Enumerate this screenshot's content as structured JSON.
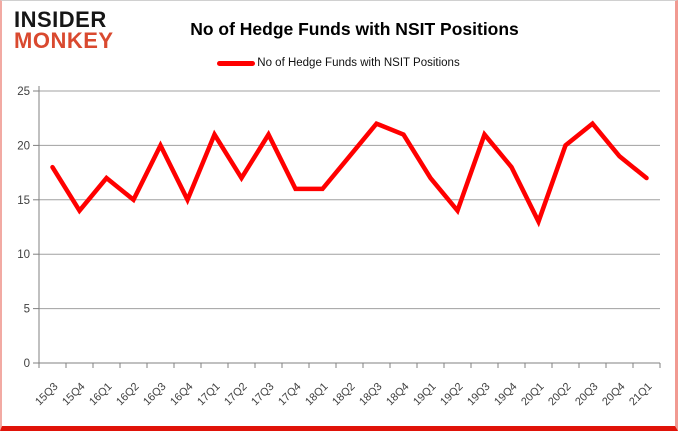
{
  "logo": {
    "line1": "INSIDER",
    "line2": "MONKEY"
  },
  "header": {
    "title": "No of Hedge Funds with NSIT Positions"
  },
  "legend": {
    "label": "No of Hedge Funds with NSIT Positions"
  },
  "colors": {
    "line": "#ff0000",
    "grid": "#a0a0a0",
    "axis": "#808080",
    "tick_text": "#404040",
    "logo_red": "#d9492f",
    "frame_border": "#e01309"
  },
  "chart_data": {
    "type": "line",
    "title": "No of Hedge Funds with NSIT Positions",
    "categories": [
      "15Q3",
      "15Q4",
      "16Q1",
      "16Q2",
      "16Q3",
      "16Q4",
      "17Q1",
      "17Q2",
      "17Q3",
      "17Q4",
      "18Q1",
      "18Q2",
      "18Q3",
      "18Q4",
      "19Q1",
      "19Q2",
      "19Q3",
      "19Q4",
      "20Q1",
      "20Q2",
      "20Q3",
      "20Q4",
      "21Q1"
    ],
    "values": [
      18,
      14,
      17,
      15,
      20,
      15,
      21,
      17,
      21,
      16,
      16,
      19,
      22,
      21,
      17,
      14,
      21,
      18,
      13,
      20,
      22,
      19,
      17
    ],
    "xlabel": "",
    "ylabel": "",
    "ylim": [
      0,
      25
    ],
    "yticks": [
      0,
      5,
      10,
      15,
      20,
      25
    ],
    "grid": true,
    "legend_position": "top",
    "line_color": "#ff0000"
  }
}
